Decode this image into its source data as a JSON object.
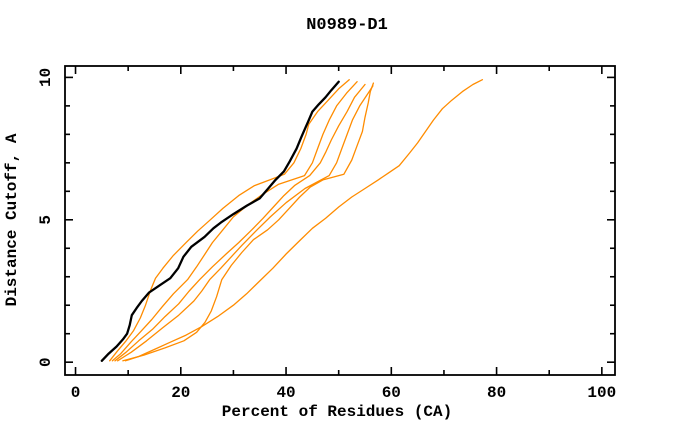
{
  "chart_data": {
    "type": "line",
    "title": "N0989-D1",
    "xlabel": "Percent of Residues (CA)",
    "ylabel": "Distance Cutoff, A",
    "xlim": [
      -2,
      102.5
    ],
    "ylim": [
      -0.45,
      10.4
    ],
    "x_axis": {
      "major_ticks": [
        0,
        20,
        40,
        60,
        80,
        100
      ],
      "major_tick_labels": [
        "0",
        "20",
        "40",
        "60",
        "80",
        "100"
      ],
      "minor_ticks": [
        10,
        30,
        50,
        70,
        90
      ]
    },
    "y_axis": {
      "major_ticks": [
        0,
        5,
        10
      ],
      "major_tick_labels": [
        "0",
        "5",
        "10"
      ],
      "minor_ticks": [
        1,
        2,
        3,
        4,
        6,
        7,
        8,
        9
      ]
    },
    "grid": false,
    "legend": "none",
    "colors": {
      "target_curve": "#000000",
      "model_curves": "#ff8c00"
    },
    "series": [
      {
        "name": "model-curve-1",
        "color": "#ff8c00",
        "width": 1.3,
        "points": [
          [
            6.5,
            0.05
          ],
          [
            8,
            0.4
          ],
          [
            9.6,
            0.75
          ],
          [
            11,
            1.1
          ],
          [
            12.3,
            1.55
          ],
          [
            13.3,
            2.0
          ],
          [
            14.3,
            2.55
          ],
          [
            15.2,
            2.95
          ],
          [
            16.6,
            3.3
          ],
          [
            18.6,
            3.75
          ],
          [
            21,
            4.2
          ],
          [
            23.2,
            4.6
          ],
          [
            25.6,
            5.0
          ],
          [
            28,
            5.4
          ],
          [
            31,
            5.85
          ],
          [
            34,
            6.2
          ],
          [
            37.6,
            6.45
          ],
          [
            39.7,
            6.6
          ],
          [
            41.5,
            7.0
          ],
          [
            42.8,
            7.5
          ],
          [
            43.8,
            8.0
          ],
          [
            44.3,
            8.35
          ],
          [
            46,
            8.8
          ],
          [
            48,
            9.2
          ],
          [
            50,
            9.6
          ],
          [
            52,
            9.92
          ]
        ]
      },
      {
        "name": "model-curve-2",
        "color": "#ff8c00",
        "width": 1.3,
        "points": [
          [
            7,
            0.05
          ],
          [
            8.6,
            0.3
          ],
          [
            10.5,
            0.7
          ],
          [
            12.5,
            1.1
          ],
          [
            14.5,
            1.5
          ],
          [
            16.5,
            1.95
          ],
          [
            18.6,
            2.4
          ],
          [
            21.3,
            2.9
          ],
          [
            23,
            3.35
          ],
          [
            24.6,
            3.8
          ],
          [
            26,
            4.2
          ],
          [
            28,
            4.65
          ],
          [
            30,
            5.1
          ],
          [
            32.6,
            5.5
          ],
          [
            35.6,
            5.9
          ],
          [
            38.6,
            6.25
          ],
          [
            43.5,
            6.55
          ],
          [
            45,
            7.0
          ],
          [
            46,
            7.5
          ],
          [
            47,
            8.0
          ],
          [
            48.2,
            8.5
          ],
          [
            49.6,
            9.0
          ],
          [
            51.5,
            9.45
          ],
          [
            53.5,
            9.85
          ]
        ]
      },
      {
        "name": "model-curve-3",
        "color": "#ff8c00",
        "width": 1.3,
        "points": [
          [
            7.5,
            0.05
          ],
          [
            9.6,
            0.35
          ],
          [
            12,
            0.75
          ],
          [
            14.6,
            1.15
          ],
          [
            17,
            1.6
          ],
          [
            19.6,
            2.05
          ],
          [
            21.6,
            2.5
          ],
          [
            23.6,
            2.9
          ],
          [
            26,
            3.35
          ],
          [
            28.6,
            3.8
          ],
          [
            31,
            4.2
          ],
          [
            33.5,
            4.65
          ],
          [
            35.6,
            5.05
          ],
          [
            37.6,
            5.45
          ],
          [
            39.6,
            5.85
          ],
          [
            41.6,
            6.2
          ],
          [
            44.5,
            6.55
          ],
          [
            46.5,
            7.0
          ],
          [
            47.6,
            7.4
          ],
          [
            48.6,
            7.8
          ],
          [
            50,
            8.3
          ],
          [
            51.6,
            8.8
          ],
          [
            53,
            9.3
          ],
          [
            55,
            9.75
          ]
        ]
      },
      {
        "name": "model-curve-4",
        "color": "#ff8c00",
        "width": 1.3,
        "points": [
          [
            8,
            0.05
          ],
          [
            10.6,
            0.35
          ],
          [
            13.5,
            0.75
          ],
          [
            16.5,
            1.2
          ],
          [
            19.6,
            1.65
          ],
          [
            22.5,
            2.15
          ],
          [
            24,
            2.5
          ],
          [
            25.5,
            2.9
          ],
          [
            27.6,
            3.3
          ],
          [
            29.6,
            3.7
          ],
          [
            31.6,
            4.1
          ],
          [
            34.5,
            4.65
          ],
          [
            37,
            5.1
          ],
          [
            40,
            5.6
          ],
          [
            43.6,
            6.1
          ],
          [
            48.2,
            6.55
          ],
          [
            49.6,
            7.0
          ],
          [
            50.6,
            7.5
          ],
          [
            51.6,
            8.0
          ],
          [
            52.6,
            8.5
          ],
          [
            54,
            9.0
          ],
          [
            55.6,
            9.45
          ],
          [
            56.5,
            9.7
          ]
        ]
      },
      {
        "name": "model-curve-5",
        "color": "#ff8c00",
        "width": 1.3,
        "points": [
          [
            9,
            0.05
          ],
          [
            13,
            0.25
          ],
          [
            17,
            0.5
          ],
          [
            20.6,
            0.75
          ],
          [
            23,
            1.05
          ],
          [
            24.6,
            1.4
          ],
          [
            25.8,
            1.8
          ],
          [
            26.8,
            2.3
          ],
          [
            27.8,
            2.9
          ],
          [
            29.6,
            3.4
          ],
          [
            31.6,
            3.85
          ],
          [
            33.8,
            4.3
          ],
          [
            36.5,
            4.65
          ],
          [
            38.6,
            5.0
          ],
          [
            40.6,
            5.4
          ],
          [
            42.6,
            5.8
          ],
          [
            44.6,
            6.15
          ],
          [
            47,
            6.4
          ],
          [
            51,
            6.6
          ],
          [
            52.5,
            7.1
          ],
          [
            53.5,
            7.6
          ],
          [
            54.5,
            8.1
          ],
          [
            55,
            8.6
          ],
          [
            55.6,
            9.1
          ],
          [
            56,
            9.5
          ],
          [
            56.6,
            9.8
          ]
        ]
      },
      {
        "name": "model-curve-6-outlier",
        "color": "#ff8c00",
        "width": 1.3,
        "points": [
          [
            9.5,
            0.05
          ],
          [
            12,
            0.2
          ],
          [
            15,
            0.45
          ],
          [
            18,
            0.7
          ],
          [
            21,
            0.95
          ],
          [
            24,
            1.25
          ],
          [
            27,
            1.6
          ],
          [
            30,
            2.0
          ],
          [
            32.5,
            2.4
          ],
          [
            35,
            2.85
          ],
          [
            37.5,
            3.3
          ],
          [
            40,
            3.8
          ],
          [
            42.5,
            4.25
          ],
          [
            45,
            4.7
          ],
          [
            47.5,
            5.05
          ],
          [
            50,
            5.45
          ],
          [
            52.5,
            5.8
          ],
          [
            55,
            6.1
          ],
          [
            57.5,
            6.4
          ],
          [
            59.5,
            6.65
          ],
          [
            61.5,
            6.9
          ],
          [
            63.5,
            7.35
          ],
          [
            65,
            7.7
          ],
          [
            66.5,
            8.1
          ],
          [
            68,
            8.5
          ],
          [
            69.7,
            8.9
          ],
          [
            71.5,
            9.2
          ],
          [
            73.5,
            9.5
          ],
          [
            75.5,
            9.75
          ],
          [
            77.3,
            9.92
          ]
        ]
      },
      {
        "name": "target-curve-black",
        "color": "#000000",
        "width": 2.3,
        "points": [
          [
            5,
            0.05
          ],
          [
            6.3,
            0.3
          ],
          [
            7.8,
            0.55
          ],
          [
            9,
            0.8
          ],
          [
            9.8,
            1.0
          ],
          [
            10.3,
            1.3
          ],
          [
            10.7,
            1.65
          ],
          [
            11.6,
            1.9
          ],
          [
            12.6,
            2.15
          ],
          [
            14,
            2.45
          ],
          [
            16,
            2.7
          ],
          [
            18,
            2.95
          ],
          [
            19.5,
            3.3
          ],
          [
            20.5,
            3.7
          ],
          [
            22,
            4.05
          ],
          [
            24.5,
            4.4
          ],
          [
            26.2,
            4.7
          ],
          [
            27.6,
            4.9
          ],
          [
            30,
            5.2
          ],
          [
            32.6,
            5.5
          ],
          [
            35,
            5.75
          ],
          [
            36.6,
            6.1
          ],
          [
            38,
            6.4
          ],
          [
            39.6,
            6.7
          ],
          [
            40.7,
            7.05
          ],
          [
            42,
            7.5
          ],
          [
            42.9,
            7.9
          ],
          [
            43.6,
            8.2
          ],
          [
            44.2,
            8.45
          ],
          [
            45,
            8.8
          ],
          [
            46.2,
            9.05
          ],
          [
            47.5,
            9.3
          ],
          [
            48.6,
            9.55
          ],
          [
            50,
            9.85
          ]
        ]
      }
    ]
  }
}
